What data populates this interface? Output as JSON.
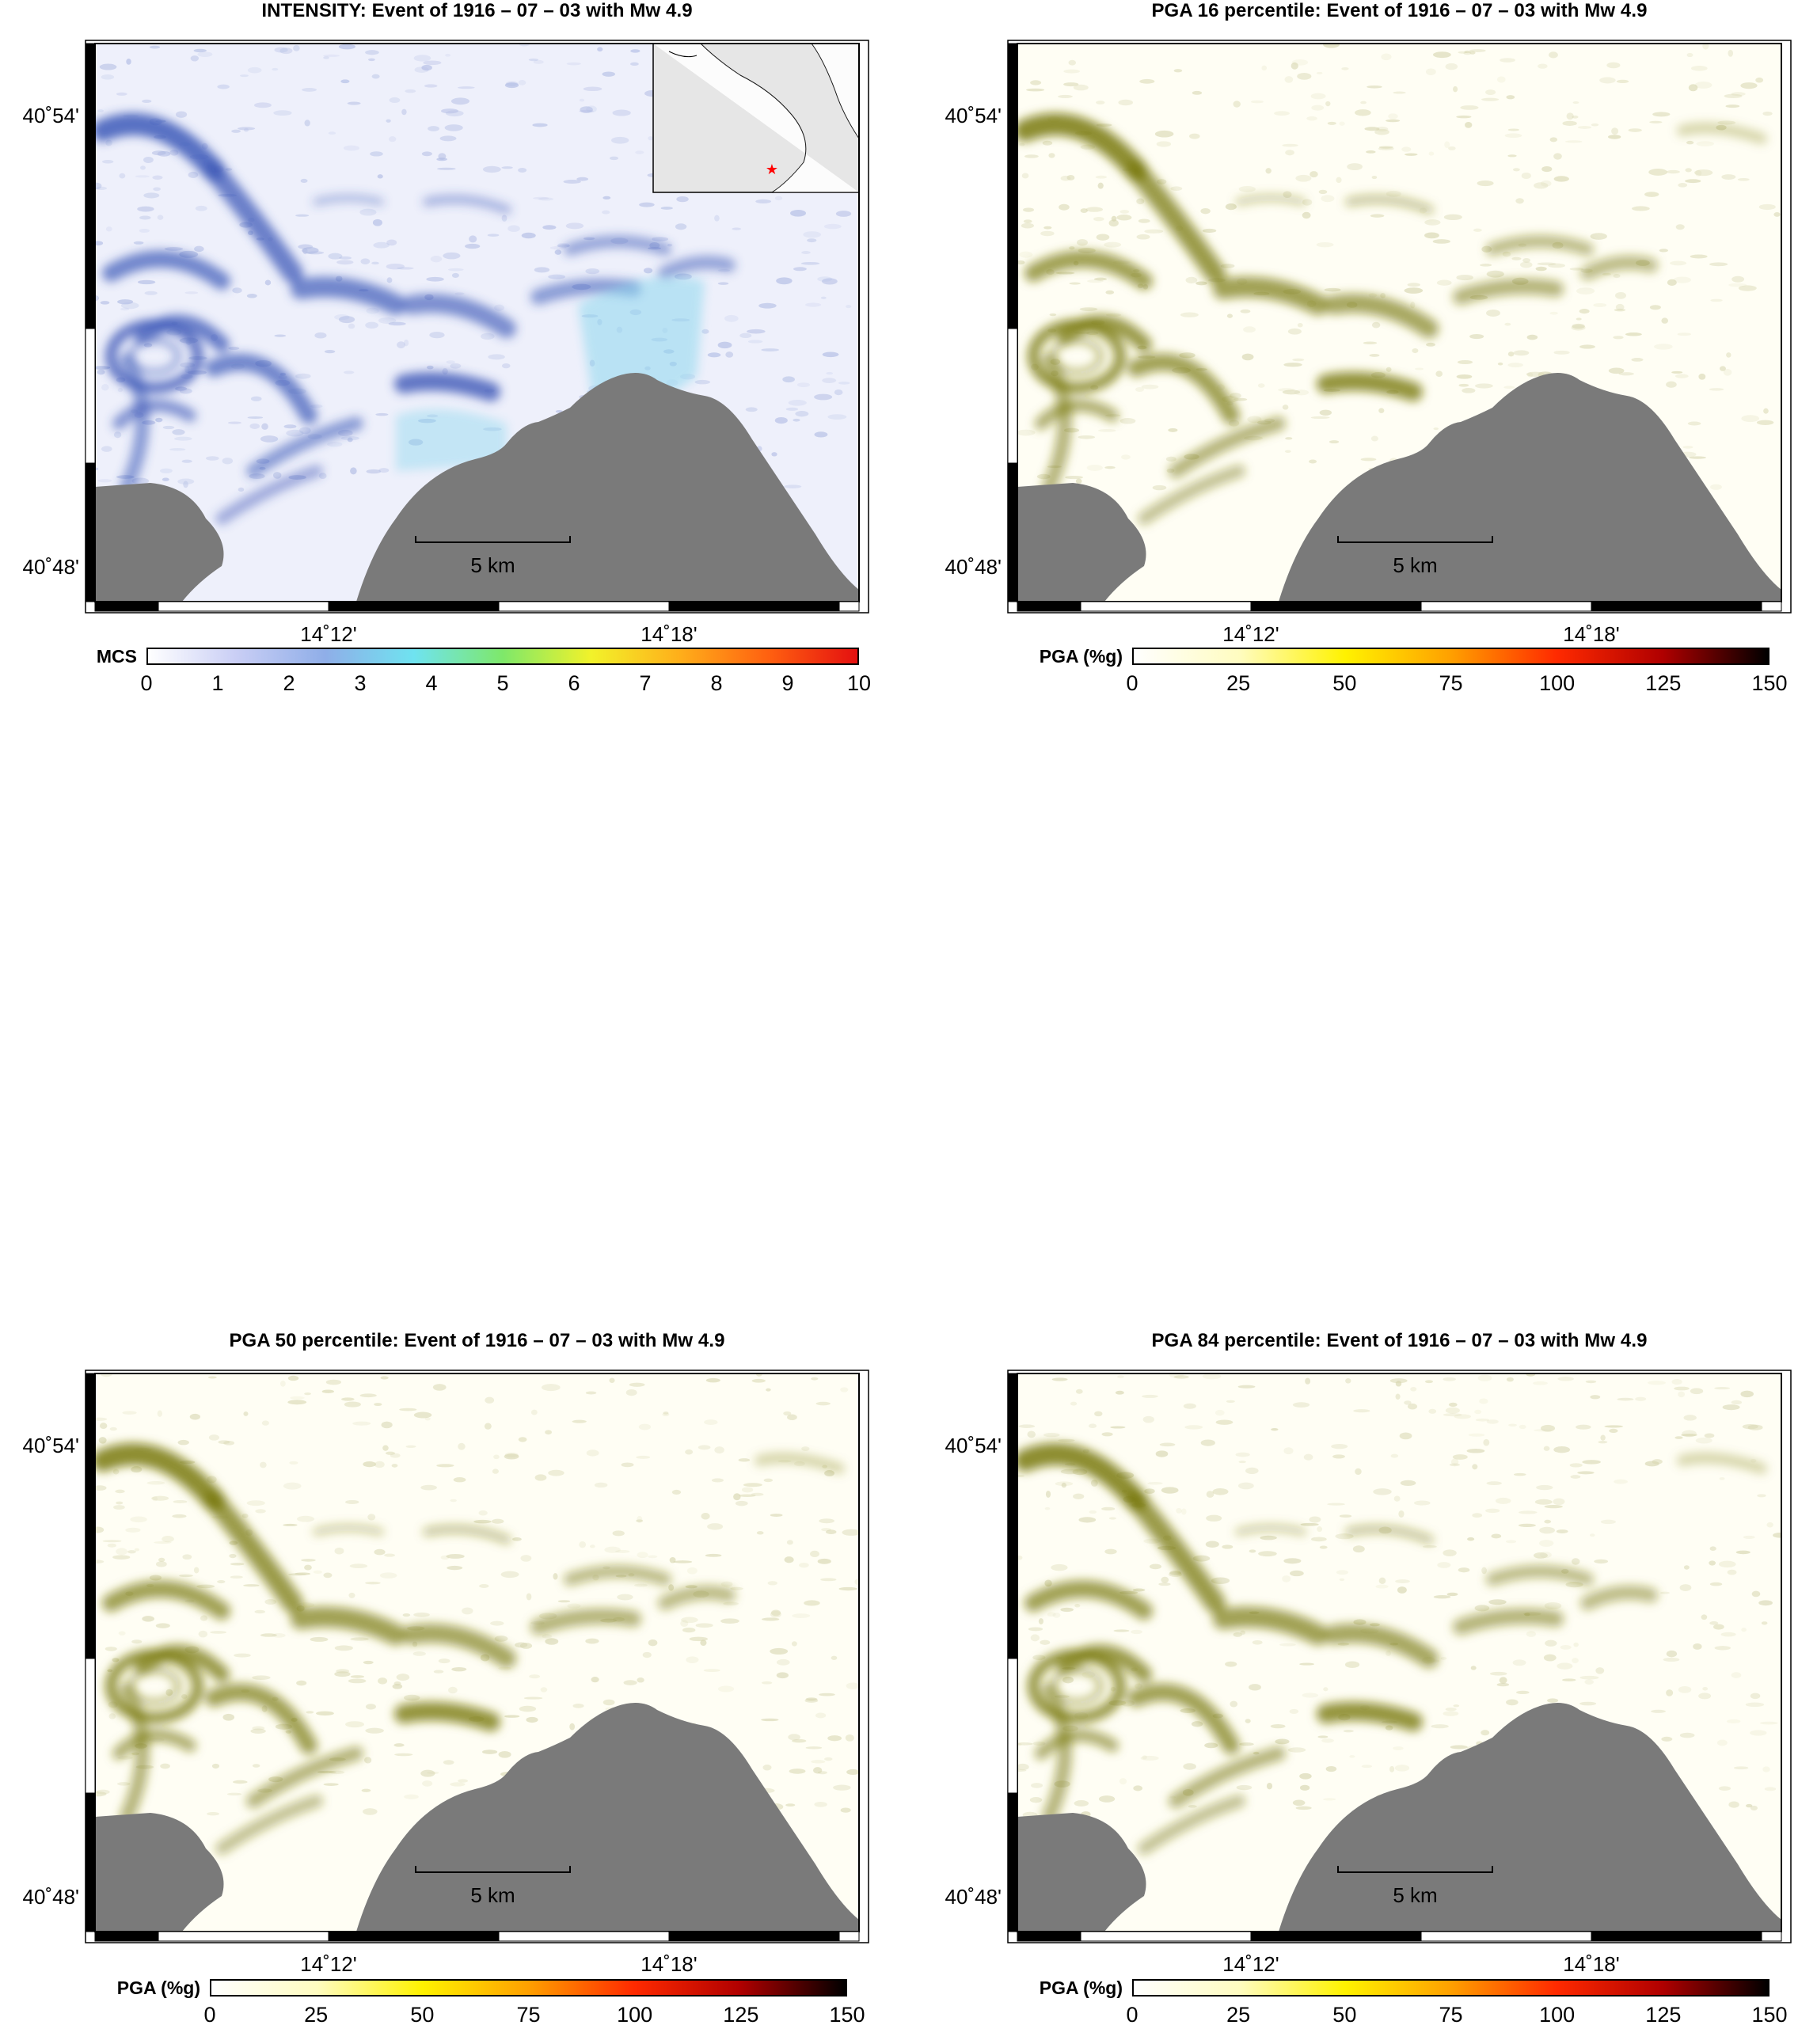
{
  "panels": [
    {
      "id": "intensity",
      "title": "INTENSITY: Event of 1916 – 07 – 03 with Mw 4.9",
      "colorbar_label": "MCS",
      "colorbar_ticks": [
        "0",
        "1",
        "2",
        "3",
        "4",
        "5",
        "6",
        "7",
        "8",
        "9",
        "10"
      ],
      "colorbar_stops": [
        "#ffffff",
        "#c9cef5",
        "#8faee8",
        "#6fe3f0",
        "#7ee86a",
        "#f2f22a",
        "#ffae1a",
        "#ff6010",
        "#e41010"
      ],
      "tint": "#3d59b8",
      "has_inset": true
    },
    {
      "id": "pga16",
      "title": "PGA 16 percentile: Event of 1916 – 07 – 03 with Mw 4.9",
      "colorbar_label": "PGA (%g)",
      "colorbar_ticks": [
        "0",
        "25",
        "50",
        "75",
        "100",
        "125",
        "150"
      ],
      "colorbar_stops": [
        "#ffffff",
        "#fffcc0",
        "#fff200",
        "#ffa000",
        "#ff2a00",
        "#b00000",
        "#000000"
      ],
      "tint": "#7a7a12",
      "has_inset": false
    },
    {
      "id": "pga50",
      "title": "PGA 50 percentile: Event of 1916 – 07 – 03 with Mw 4.9",
      "colorbar_label": "PGA (%g)",
      "colorbar_ticks": [
        "0",
        "25",
        "50",
        "75",
        "100",
        "125",
        "150"
      ],
      "colorbar_stops": [
        "#ffffff",
        "#fffcc0",
        "#fff200",
        "#ffa000",
        "#ff2a00",
        "#b00000",
        "#000000"
      ],
      "tint": "#7a7a12",
      "has_inset": false
    },
    {
      "id": "pga84",
      "title": "PGA 84 percentile: Event of 1916 – 07 – 03 with Mw 4.9",
      "colorbar_label": "PGA (%g)",
      "colorbar_ticks": [
        "0",
        "25",
        "50",
        "75",
        "100",
        "125",
        "150"
      ],
      "colorbar_stops": [
        "#ffffff",
        "#fffcc0",
        "#fff200",
        "#ffa000",
        "#ff2a00",
        "#b00000",
        "#000000"
      ],
      "tint": "#7a7a12",
      "has_inset": false
    }
  ],
  "axes": {
    "lat_ticks": [
      "40˚54'",
      "40˚48'"
    ],
    "lon_ticks": [
      "14˚12'",
      "14˚18'"
    ]
  },
  "scale_bar": "5 km",
  "colors": {
    "sea": "#7a7a7a",
    "frame": "#000000",
    "epicenter": "#ff0000",
    "inset_land": "#e6e6e6"
  }
}
